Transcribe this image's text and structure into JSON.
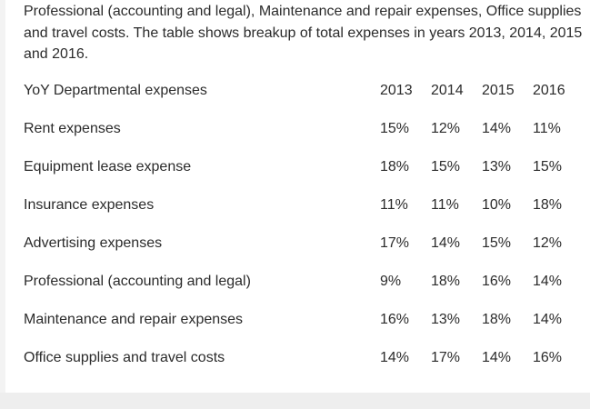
{
  "intro_text": "Professional (accounting and legal), Maintenance and repair expenses, Office supplies and travel costs. The table shows breakup of total expenses in years 2013, 2014, 2015 and 2016.",
  "table": {
    "header": [
      "YoY Departmental expenses",
      "2013",
      "2014",
      "2015",
      "2016"
    ],
    "rows": [
      [
        "Rent expenses",
        "15%",
        "12%",
        "14%",
        "11%"
      ],
      [
        "Equipment lease expense",
        "18%",
        "15%",
        "13%",
        "15%"
      ],
      [
        "Insurance expenses",
        "11%",
        "11%",
        "10%",
        "18%"
      ],
      [
        "Advertising expenses",
        "17%",
        "14%",
        "15%",
        "12%"
      ],
      [
        "Professional (accounting and legal)",
        "9%",
        "18%",
        "16%",
        "14%"
      ],
      [
        "Maintenance and repair expenses",
        "16%",
        "13%",
        "18%",
        "14%"
      ],
      [
        "Office supplies and travel costs",
        "14%",
        "17%",
        "14%",
        "16%"
      ]
    ]
  }
}
